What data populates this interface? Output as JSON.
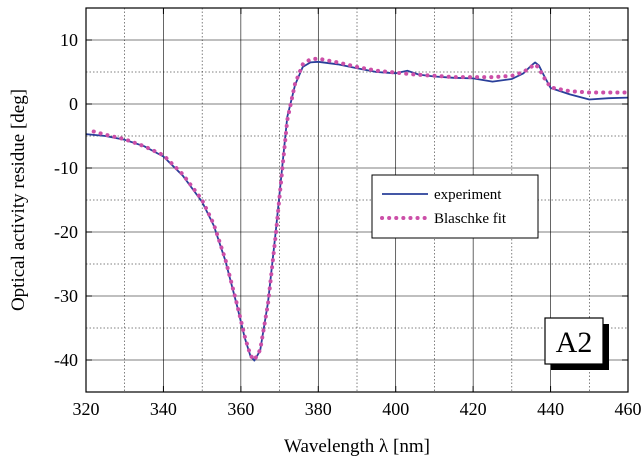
{
  "chart_data": {
    "type": "line",
    "xlabel": "Wavelength λ [nm]",
    "ylabel": "Optical activity residue [deg]",
    "xlim": [
      320,
      460
    ],
    "ylim": [
      -45,
      15
    ],
    "x_ticks": [
      320,
      340,
      360,
      380,
      400,
      420,
      440,
      460
    ],
    "y_ticks": [
      -40,
      -30,
      -20,
      -10,
      0,
      10
    ],
    "grid": true,
    "legend_position": "center-right",
    "panel_label": "A2",
    "series": [
      {
        "name": "experiment",
        "style": "solid",
        "color": "#2a3f9a",
        "x": [
          320,
          325,
          330,
          335,
          340,
          345,
          350,
          353,
          356,
          359,
          361,
          362.5,
          363.5,
          365,
          367,
          369,
          371,
          372,
          374,
          376,
          378,
          380,
          385,
          390,
          395,
          400,
          403,
          406,
          410,
          415,
          420,
          425,
          430,
          433,
          435,
          436,
          437,
          438,
          440,
          445,
          450,
          455,
          460
        ],
        "y": [
          -4.7,
          -5.0,
          -5.6,
          -6.6,
          -8.2,
          -11.2,
          -15.3,
          -19.0,
          -24.5,
          -31.5,
          -36.5,
          -39.4,
          -40.1,
          -38.5,
          -31.0,
          -20.0,
          -8.0,
          -2.0,
          3.0,
          5.8,
          6.5,
          6.6,
          6.2,
          5.6,
          5.0,
          4.8,
          5.2,
          4.6,
          4.3,
          4.1,
          4.0,
          3.5,
          3.9,
          4.8,
          6.0,
          6.5,
          6.0,
          4.8,
          2.5,
          1.5,
          0.7,
          0.9,
          1.0
        ]
      },
      {
        "name": "Blaschke fit",
        "style": "dotted",
        "color": "#cc4fa8",
        "x": [
          322,
          325,
          330,
          335,
          340,
          345,
          350,
          353,
          356,
          359,
          361,
          362.5,
          363.5,
          365,
          367,
          369,
          371,
          372,
          374,
          376,
          378,
          380,
          385,
          390,
          395,
          400,
          405,
          410,
          415,
          420,
          425,
          430,
          433,
          435,
          436,
          437,
          438,
          440,
          445,
          450,
          455,
          460
        ],
        "y": [
          -4.3,
          -4.8,
          -5.5,
          -6.6,
          -8.0,
          -11.0,
          -15.0,
          -18.8,
          -24.3,
          -31.3,
          -36.3,
          -39.3,
          -40.0,
          -38.4,
          -31.2,
          -20.5,
          -8.5,
          -2.5,
          3.2,
          6.2,
          7.0,
          7.1,
          6.5,
          5.8,
          5.2,
          4.9,
          4.6,
          4.4,
          4.2,
          4.2,
          4.2,
          4.4,
          5.0,
          5.8,
          6.2,
          5.6,
          4.4,
          2.6,
          2.0,
          1.8,
          1.8,
          1.8
        ]
      }
    ]
  }
}
